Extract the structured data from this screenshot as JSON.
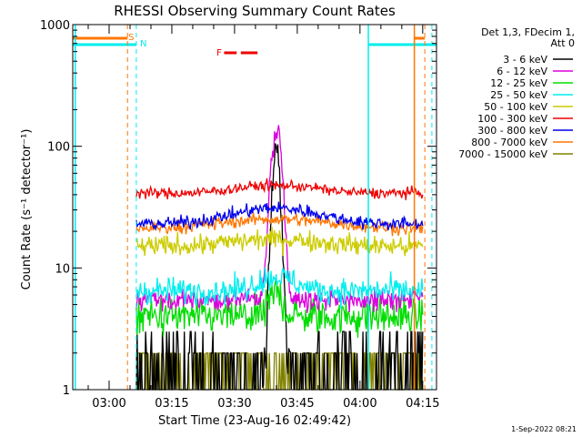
{
  "chart_data": {
    "type": "line",
    "title": "RHESSI Observing Summary Count Rates",
    "xlabel": "Start Time (23-Aug-16 02:49:42)",
    "ylabel": "Count Rate (s⁻¹ detector⁻¹)",
    "yscale": "log",
    "ylim": [
      1,
      1000
    ],
    "xlim_minutes": [
      -8.7,
      78.3
    ],
    "x_ticks": [
      "03:00",
      "03:15",
      "03:30",
      "03:45",
      "04:00",
      "04:15"
    ],
    "x_tick_minutes": [
      0,
      15,
      30,
      45,
      60,
      75
    ],
    "y_ticks": [
      "1",
      "10",
      "100",
      "1000"
    ],
    "y_tick_values": [
      1,
      10,
      100,
      1000
    ],
    "legend_header": [
      "Det 1,3, FDecim 1,",
      "Att 0"
    ],
    "legend_position": "right",
    "timestamp": "1-Sep-2022 08:21",
    "flag_labels": {
      "saa": "S",
      "night": "N",
      "flare": "F"
    },
    "series": [
      {
        "name": "3 - 6 keV",
        "color": "#000000"
      },
      {
        "name": "6 - 12 keV",
        "color": "#dd00dd"
      },
      {
        "name": "12 - 25 keV",
        "color": "#00dd00"
      },
      {
        "name": "25 - 50 keV",
        "color": "#00eeee"
      },
      {
        "name": "50 - 100 keV",
        "color": "#cccc00"
      },
      {
        "name": "100 - 300 keV",
        "color": "#ee0000"
      },
      {
        "name": "300 - 800 keV",
        "color": "#0000ee"
      },
      {
        "name": "800 - 7000 keV",
        "color": "#ff7700"
      },
      {
        "name": "7000 - 15000 keV",
        "color": "#808000"
      }
    ],
    "data_time_range_minutes": [
      6.5,
      75
    ],
    "approx_levels": {
      "3 - 6 keV": [
        1,
        90
      ],
      "6 - 12 keV": [
        5.5,
        130
      ],
      "12 - 25 keV": [
        4,
        6
      ],
      "25 - 50 keV": [
        6.5,
        8
      ],
      "50 - 100 keV": [
        15,
        18
      ],
      "100 - 300 keV": [
        38,
        45
      ],
      "300 - 800 keV": [
        23,
        32
      ],
      "800 - 7000 keV": [
        21,
        26
      ],
      "7000 - 15000 keV": [
        1,
        2
      ]
    },
    "peak_time_minutes": 40
  }
}
